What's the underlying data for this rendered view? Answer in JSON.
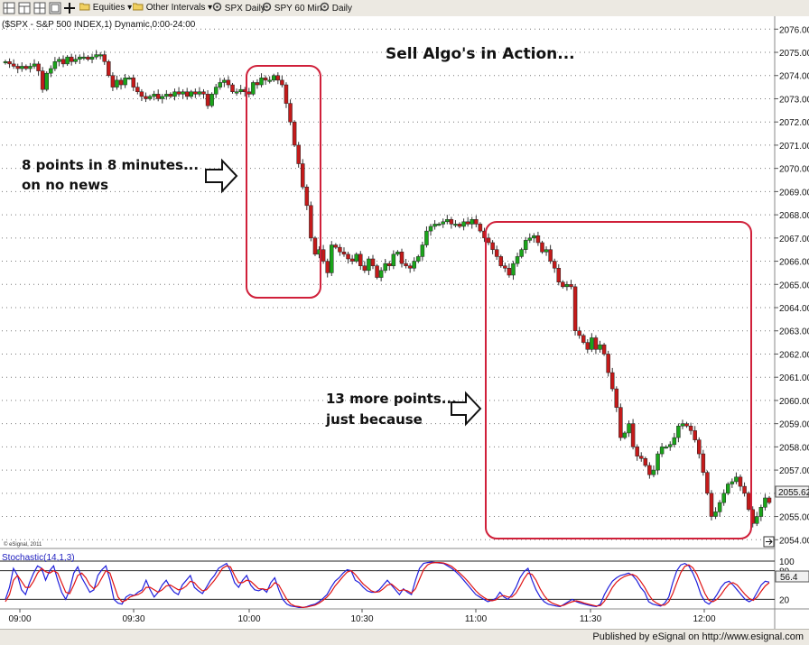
{
  "toolbar": {
    "equities_label": "Equities",
    "intervals_label": "Other Intervals",
    "spx_daily_label": "SPX Daily",
    "spy60_label": "SPY 60 Min",
    "daily_label": "Daily"
  },
  "chart_header": "($SPX - S&P 500 INDEX,1) Dynamic,0:00-24:00",
  "copyright": "© eSignal, 2011",
  "footer_text": "Published by eSignal on http://www.esignal.com",
  "colors": {
    "up": "#1aa51a",
    "down": "#c41a1a",
    "box": "#d0203a",
    "stoch_k": "#1f1fdc",
    "stoch_d": "#e01414"
  },
  "annotations": {
    "title": "Sell Algo's in Action...",
    "note1_line1": "8 points in 8 minutes...",
    "note1_line2": "on no news",
    "note2_line1": "13 more points...",
    "note2_line2": "just because"
  },
  "chart_data": [
    {
      "type": "candlestick",
      "title": "($SPX - S&P 500 INDEX,1) Dynamic,0:00-24:00",
      "xlabel": "",
      "ylabel": "",
      "x_ticks": [
        "09:00",
        "09:30",
        "10:00",
        "10:30",
        "11:00",
        "11:30",
        "12:00"
      ],
      "y_ticks": [
        "2054.00",
        "2055.00",
        "2056.00",
        "2057.00",
        "2058.00",
        "2059.00",
        "2060.00",
        "2061.00",
        "2062.00",
        "2063.00",
        "2064.00",
        "2065.00",
        "2066.00",
        "2067.00",
        "2068.00",
        "2069.00",
        "2070.00",
        "2071.00",
        "2072.00",
        "2073.00",
        "2074.00",
        "2075.00",
        "2076.00"
      ],
      "ylim": [
        2053.7,
        2076.4
      ],
      "last_price": "2055.62",
      "grid": true,
      "candle_interval_minutes": 1,
      "closes_approx": [
        2074.6,
        2074.5,
        2074.4,
        2074.3,
        2074.4,
        2074.3,
        2074.4,
        2074.5,
        2074.2,
        2073.4,
        2074.1,
        2074.3,
        2074.6,
        2074.7,
        2074.5,
        2074.8,
        2074.6,
        2074.7,
        2074.8,
        2074.8,
        2074.7,
        2074.8,
        2074.9,
        2074.9,
        2074.6,
        2074.0,
        2073.5,
        2073.8,
        2073.6,
        2073.9,
        2073.9,
        2073.5,
        2073.3,
        2073.1,
        2073.0,
        2073.1,
        2073.2,
        2073.0,
        2073.1,
        2073.2,
        2073.1,
        2073.3,
        2073.2,
        2073.3,
        2073.1,
        2073.3,
        2073.2,
        2073.3,
        2073.2,
        2072.7,
        2073.2,
        2073.5,
        2073.7,
        2073.8,
        2073.6,
        2073.3,
        2073.3,
        2073.4,
        2073.3,
        2073.2,
        2073.7,
        2073.6,
        2073.9,
        2073.8,
        2073.8,
        2074.0,
        2073.8,
        2073.6,
        2072.8,
        2072.0,
        2071.0,
        2070.2,
        2069.2,
        2068.4,
        2067.0,
        2066.3,
        2066.5,
        2066.0,
        2065.5,
        2066.7,
        2066.6,
        2066.4,
        2066.3,
        2066.1,
        2066.0,
        2066.3,
        2065.8,
        2065.6,
        2066.1,
        2065.8,
        2065.3,
        2065.6,
        2065.9,
        2065.8,
        2066.3,
        2066.4,
        2065.9,
        2065.8,
        2065.7,
        2066.0,
        2066.2,
        2066.7,
        2067.3,
        2067.5,
        2067.6,
        2067.6,
        2067.7,
        2067.8,
        2067.6,
        2067.6,
        2067.5,
        2067.7,
        2067.6,
        2067.8,
        2067.6,
        2067.3,
        2067.0,
        2066.8,
        2066.5,
        2066.2,
        2065.8,
        2065.7,
        2065.4,
        2065.9,
        2066.2,
        2066.5,
        2066.9,
        2067.0,
        2067.1,
        2066.8,
        2066.4,
        2066.5,
        2066.0,
        2065.7,
        2065.1,
        2064.9,
        2065.0,
        2064.9,
        2063.0,
        2062.8,
        2062.5,
        2062.2,
        2062.7,
        2062.2,
        2062.4,
        2062.0,
        2061.2,
        2060.5,
        2059.7,
        2058.4,
        2058.6,
        2059.0,
        2058.0,
        2057.6,
        2057.5,
        2057.2,
        2056.8,
        2057.0,
        2057.7,
        2058.0,
        2058.0,
        2058.1,
        2058.4,
        2058.9,
        2059.0,
        2058.9,
        2058.7,
        2058.3,
        2057.7,
        2056.9,
        2056.0,
        2055.0,
        2055.2,
        2055.6,
        2056.0,
        2056.4,
        2056.5,
        2056.7,
        2056.3,
        2056.0,
        2055.3,
        2054.7,
        2055.0,
        2055.4,
        2055.8,
        2055.6
      ]
    },
    {
      "type": "line",
      "title": "Stochastic(14,1,3)",
      "y_ticks": [
        "20",
        "80",
        "100"
      ],
      "ylim": [
        0,
        100
      ],
      "last_value": "56.4",
      "series": [
        {
          "values": [
            20,
            45,
            85,
            70,
            40,
            30,
            55,
            75,
            90,
            85,
            60,
            80,
            90,
            60,
            35,
            20,
            40,
            75,
            88,
            65,
            50,
            35,
            40,
            70,
            82,
            90,
            60,
            20,
            12,
            10,
            25,
            30,
            28,
            35,
            40,
            60,
            40,
            25,
            35,
            50,
            60,
            45,
            35,
            30,
            50,
            60,
            70,
            45,
            38,
            32,
            45,
            60,
            70,
            85,
            90,
            95,
            80,
            55,
            45,
            60,
            70,
            50,
            40,
            38,
            42,
            35,
            55,
            65,
            40,
            20,
            10,
            6,
            5,
            3,
            3,
            5,
            8,
            10,
            15,
            22,
            30,
            45,
            58,
            65,
            75,
            82,
            80,
            60,
            55,
            45,
            38,
            35,
            35,
            40,
            50,
            60,
            50,
            40,
            30,
            42,
            35,
            30,
            60,
            85,
            95,
            97,
            98,
            97,
            96,
            95,
            90,
            85,
            78,
            70,
            60,
            50,
            40,
            30,
            25,
            20,
            15,
            18,
            22,
            35,
            25,
            20,
            30,
            45,
            65,
            78,
            85,
            60,
            40,
            25,
            15,
            10,
            8,
            6,
            5,
            10,
            15,
            20,
            15,
            12,
            10,
            8,
            6,
            5,
            10,
            30,
            45,
            58,
            65,
            70,
            72,
            75,
            70,
            60,
            45,
            35,
            15,
            10,
            8,
            6,
            12,
            25,
            55,
            80,
            92,
            95,
            90,
            75,
            55,
            30,
            15,
            10,
            18,
            30,
            45,
            55,
            58,
            50,
            40,
            30,
            20,
            15,
            20,
            35,
            50,
            58,
            56
          ]
        },
        {
          "values": [
            15,
            30,
            60,
            70,
            58,
            45,
            45,
            58,
            75,
            85,
            78,
            75,
            80,
            75,
            55,
            35,
            32,
            50,
            70,
            75,
            65,
            50,
            42,
            50,
            65,
            80,
            75,
            50,
            25,
            15,
            18,
            25,
            28,
            30,
            35,
            45,
            45,
            40,
            35,
            40,
            48,
            50,
            45,
            40,
            42,
            48,
            58,
            55,
            45,
            38,
            40,
            50,
            60,
            72,
            85,
            90,
            88,
            70,
            55,
            55,
            60,
            58,
            50,
            42,
            42,
            40,
            45,
            55,
            50,
            35,
            20,
            10,
            6,
            5,
            3,
            4,
            6,
            8,
            12,
            18,
            25,
            35,
            48,
            58,
            68,
            77,
            80,
            72,
            62,
            52,
            45,
            38,
            35,
            36,
            42,
            50,
            52,
            45,
            38,
            40,
            38,
            33,
            42,
            62,
            82,
            92,
            96,
            97,
            97,
            96,
            93,
            89,
            82,
            75,
            67,
            58,
            48,
            38,
            30,
            24,
            19,
            17,
            19,
            26,
            28,
            25,
            25,
            33,
            47,
            63,
            75,
            72,
            60,
            42,
            28,
            18,
            12,
            9,
            6,
            8,
            12,
            15,
            17,
            15,
            12,
            10,
            8,
            6,
            7,
            16,
            30,
            45,
            56,
            63,
            68,
            71,
            72,
            68,
            58,
            45,
            30,
            18,
            12,
            8,
            8,
            15,
            32,
            55,
            76,
            89,
            92,
            86,
            72,
            52,
            32,
            18,
            15,
            20,
            30,
            42,
            52,
            55,
            50,
            40,
            30,
            22,
            18,
            25,
            37,
            48,
            55
          ]
        }
      ]
    }
  ]
}
